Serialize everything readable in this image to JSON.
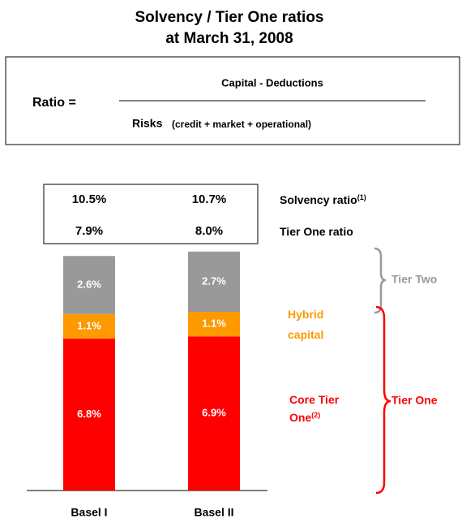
{
  "chart_data": {
    "type": "stacked_bar",
    "title": "Solvency / Tier One ratios",
    "subtitle": "at March 31, 2008",
    "formula": {
      "lhs": "Ratio =",
      "numerator": "Capital - Deductions",
      "denominator": "Risks",
      "denominator_detail": "(credit + market + operational)"
    },
    "categories": [
      "Basel I",
      "Basel II"
    ],
    "series": [
      {
        "name": "Core Tier One",
        "note": "(2)",
        "color": "#ff0000",
        "values": [
          6.8,
          6.9
        ],
        "value_labels": [
          "6.8%",
          "6.9%"
        ]
      },
      {
        "name": "Hybrid capital",
        "color": "#ff9900",
        "values": [
          1.1,
          1.1
        ],
        "value_labels": [
          "1.1%",
          "1.1%"
        ]
      },
      {
        "name": "Tier Two",
        "color": "#999999",
        "values": [
          2.6,
          2.7
        ],
        "value_labels": [
          "2.6%",
          "2.7%"
        ]
      }
    ],
    "ratios": [
      {
        "name": "Solvency ratio",
        "note": "(1)",
        "values": [
          10.5,
          10.7
        ],
        "value_labels": [
          "10.5%",
          "10.7%"
        ]
      },
      {
        "name": "Tier One ratio",
        "values": [
          7.9,
          8.0
        ],
        "value_labels": [
          "7.9%",
          "8.0%"
        ]
      }
    ],
    "braces": [
      {
        "label": "Tier Two",
        "color": "#999999"
      },
      {
        "label": "Tier One",
        "color": "#ff0000"
      }
    ]
  }
}
